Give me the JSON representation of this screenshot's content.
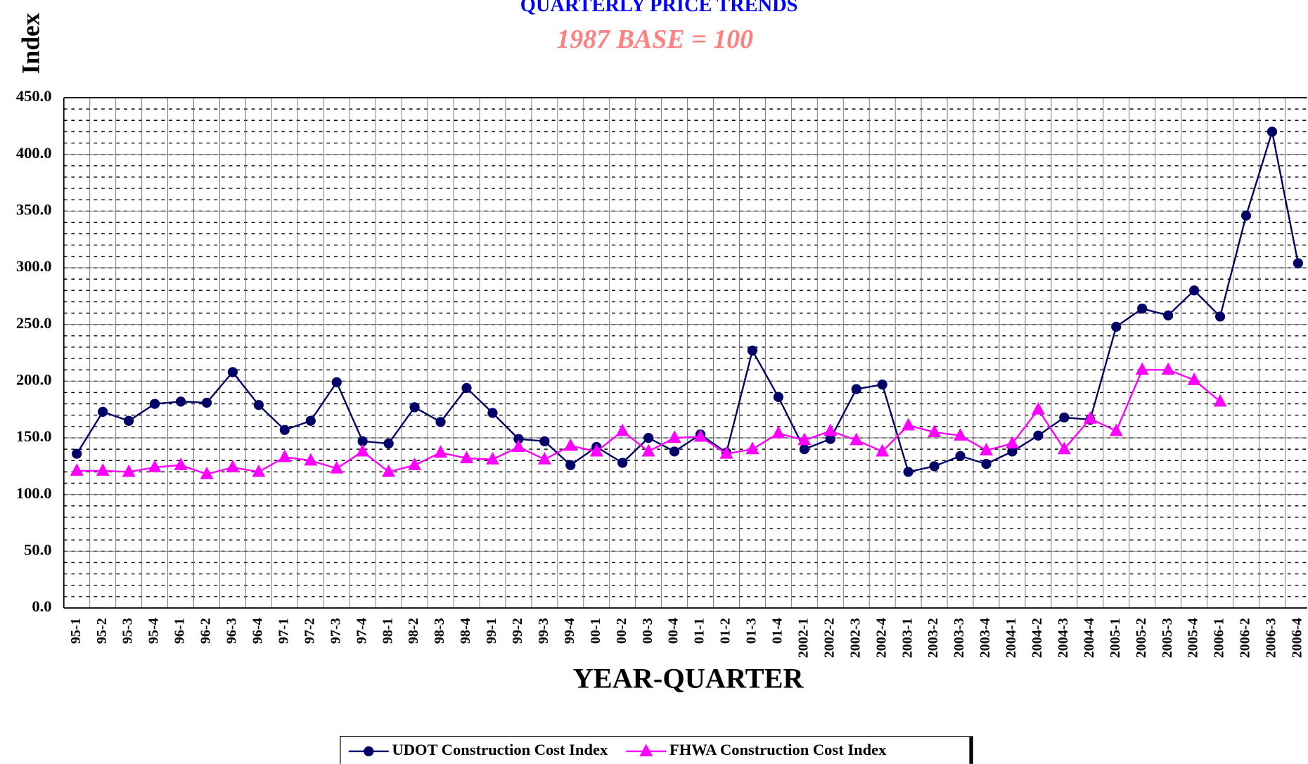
{
  "chart_data": {
    "type": "line",
    "title": "QUARTERLY PRICE TRENDS",
    "subtitle": "1987 BASE = 100",
    "y_label": "Index",
    "x_label": "YEAR-QUARTER",
    "categories": [
      "95-1",
      "95-2",
      "95-3",
      "95-4",
      "96-1",
      "96-2",
      "96-3",
      "96-4",
      "97-1",
      "97-2",
      "97-3",
      "97-4",
      "98-1",
      "98-2",
      "98-3",
      "98-4",
      "99-1",
      "99-2",
      "99-3",
      "99-4",
      "00-1",
      "00-2",
      "00-3",
      "00-4",
      "01-1",
      "01-2",
      "01-3",
      "01-4",
      "2002-1",
      "2002-2",
      "2002-3",
      "2002-4",
      "2003-1",
      "2003-2",
      "2003-3",
      "2003-4",
      "2004-1",
      "2004-2",
      "2004-3",
      "2004-4",
      "2005-1",
      "2005-2",
      "2005-3",
      "2005-4",
      "2006-1",
      "2006-2",
      "2006-3",
      "2006-4"
    ],
    "series": [
      {
        "name": "UDOT Construction Cost Index",
        "color": "#000066",
        "marker": "circle",
        "values": [
          136,
          173,
          165,
          180,
          182,
          181,
          208,
          179,
          157,
          165,
          199,
          147,
          145,
          177,
          164,
          194,
          172,
          149,
          147,
          126,
          142,
          128,
          150,
          138,
          153,
          137,
          227,
          186,
          140,
          149,
          193,
          197,
          120,
          125,
          134,
          127,
          138,
          152,
          168,
          166,
          248,
          264,
          258,
          280,
          257,
          346,
          420,
          304
        ]
      },
      {
        "name": "FHWA Construction Cost Index",
        "color": "#ff00ff",
        "marker": "triangle",
        "values": [
          121,
          121,
          120,
          124,
          126,
          118,
          124,
          120,
          133,
          130,
          123,
          138,
          120,
          126,
          137,
          132,
          131,
          142,
          131,
          143,
          138,
          156,
          138,
          150,
          151,
          136,
          140,
          154,
          148,
          156,
          148,
          138,
          161,
          155,
          152,
          139,
          145,
          175,
          140,
          167,
          156,
          210,
          210,
          201,
          182,
          null,
          null,
          null
        ]
      }
    ],
    "ylim": [
      0,
      450
    ],
    "yticks": [
      {
        "value": 0,
        "label": "0.0"
      },
      {
        "value": 50,
        "label": "50.0"
      },
      {
        "value": 100,
        "label": "100.0"
      },
      {
        "value": 150,
        "label": "150.0"
      },
      {
        "value": 200,
        "label": "200.0"
      },
      {
        "value": 250,
        "label": "250.0"
      },
      {
        "value": 300,
        "label": "300.0"
      },
      {
        "value": 350,
        "label": "350.0"
      },
      {
        "value": 400,
        "label": "400.0"
      },
      {
        "value": 450,
        "label": "450.0"
      }
    ],
    "grid": true,
    "legend": "bottom"
  }
}
